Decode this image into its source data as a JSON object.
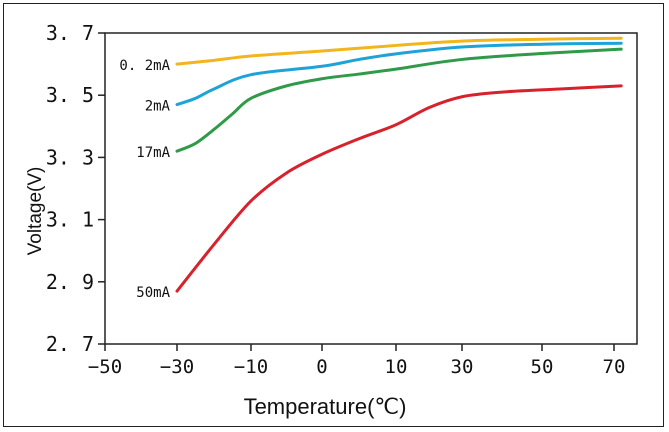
{
  "chart_data": {
    "type": "line",
    "title": "",
    "xlabel": "Temperature(℃)",
    "ylabel": "Voltage(V)",
    "x_tick_labels": [
      "−50",
      "−30",
      "−10",
      "0",
      "10",
      "30",
      "50",
      "70"
    ],
    "y_tick_labels": [
      "3. 7",
      "3. 5",
      "3. 3",
      "3. 1",
      "2. 9",
      "2. 7"
    ],
    "y_ticks": [
      3.7,
      3.5,
      3.3,
      3.1,
      2.9,
      2.7
    ],
    "ylim": [
      2.7,
      3.7
    ],
    "grid": false,
    "legend": "inline labels at left end of each curve",
    "series": [
      {
        "name": "0.2mA",
        "label": "0. 2mA",
        "color": "#f2b51c",
        "points": [
          {
            "x": -30,
            "y": 3.6
          },
          {
            "x": -20,
            "y": 3.612
          },
          {
            "x": -10,
            "y": 3.626
          },
          {
            "x": 0,
            "y": 3.642
          },
          {
            "x": 10,
            "y": 3.66
          },
          {
            "x": 30,
            "y": 3.674
          },
          {
            "x": 50,
            "y": 3.68
          },
          {
            "x": 72,
            "y": 3.683
          }
        ]
      },
      {
        "name": "2mA",
        "label": "2mA",
        "color": "#1ea3d8",
        "points": [
          {
            "x": -30,
            "y": 3.47
          },
          {
            "x": -25,
            "y": 3.49
          },
          {
            "x": -20,
            "y": 3.52
          },
          {
            "x": -10,
            "y": 3.566
          },
          {
            "x": 0,
            "y": 3.593
          },
          {
            "x": 5,
            "y": 3.615
          },
          {
            "x": 10,
            "y": 3.633
          },
          {
            "x": 30,
            "y": 3.655
          },
          {
            "x": 50,
            "y": 3.664
          },
          {
            "x": 72,
            "y": 3.667
          }
        ]
      },
      {
        "name": "17mA",
        "label": "17mA",
        "color": "#2f9a47",
        "points": [
          {
            "x": -30,
            "y": 3.32
          },
          {
            "x": -25,
            "y": 3.345
          },
          {
            "x": -20,
            "y": 3.39
          },
          {
            "x": -15,
            "y": 3.44
          },
          {
            "x": -10,
            "y": 3.49
          },
          {
            "x": -5,
            "y": 3.53
          },
          {
            "x": 0,
            "y": 3.553
          },
          {
            "x": 5,
            "y": 3.568
          },
          {
            "x": 10,
            "y": 3.584
          },
          {
            "x": 30,
            "y": 3.615
          },
          {
            "x": 50,
            "y": 3.634
          },
          {
            "x": 72,
            "y": 3.648
          }
        ]
      },
      {
        "name": "50mA",
        "label": "50mA",
        "color": "#d8222b",
        "points": [
          {
            "x": -30,
            "y": 2.87
          },
          {
            "x": -20,
            "y": 3.02
          },
          {
            "x": -10,
            "y": 3.16
          },
          {
            "x": -5,
            "y": 3.25
          },
          {
            "x": 0,
            "y": 3.31
          },
          {
            "x": 5,
            "y": 3.36
          },
          {
            "x": 10,
            "y": 3.405
          },
          {
            "x": 20,
            "y": 3.46
          },
          {
            "x": 30,
            "y": 3.495
          },
          {
            "x": 40,
            "y": 3.51
          },
          {
            "x": 55,
            "y": 3.52
          },
          {
            "x": 72,
            "y": 3.53
          }
        ]
      }
    ]
  }
}
